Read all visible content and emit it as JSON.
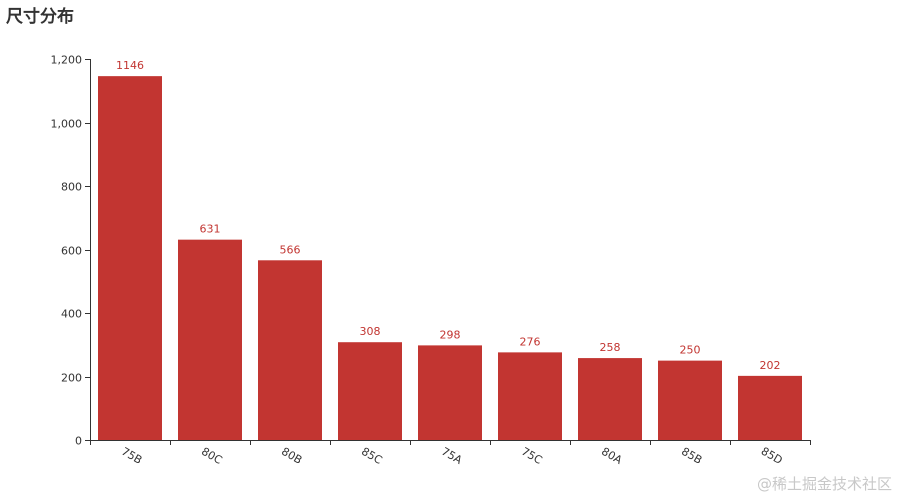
{
  "chart_data": {
    "type": "bar",
    "title": "尺寸分布",
    "categories": [
      "75B",
      "80C",
      "80B",
      "85C",
      "75A",
      "75C",
      "80A",
      "85B",
      "85D"
    ],
    "values": [
      1146,
      631,
      566,
      308,
      298,
      276,
      258,
      250,
      202
    ],
    "xlabel": "",
    "ylabel": "",
    "ylim": [
      0,
      1200
    ],
    "yticks": [
      0,
      200,
      400,
      600,
      800,
      1000,
      1200
    ],
    "ytick_labels": [
      "0",
      "200",
      "400",
      "600",
      "800",
      "1,000",
      "1,200"
    ],
    "bar_color": "#c23531",
    "label_color": "#c23531",
    "grid": false,
    "legend": "none"
  },
  "watermark": "@稀土掘金技术社区"
}
